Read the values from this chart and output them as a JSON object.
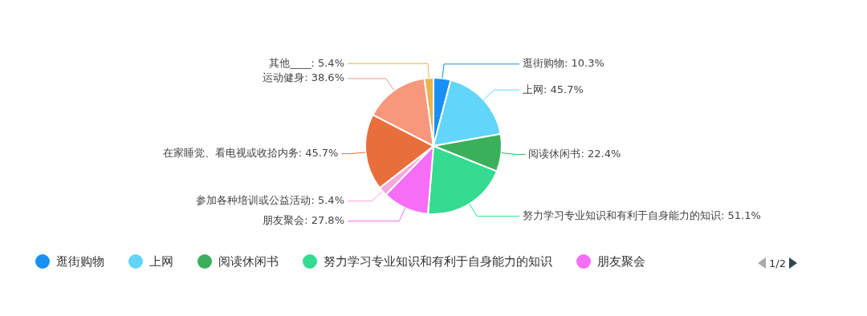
{
  "chart_data": {
    "type": "pie",
    "categories": [
      "逛街购物",
      "上网",
      "阅读休闲书",
      "努力学习专业知识和有利于自身能力的知识",
      "朋友聚会",
      "参加各种培训或公益活动",
      "在家睡觉、看电视或收拾内务",
      "运动健身",
      "其他____"
    ],
    "values": [
      10.3,
      45.7,
      22.4,
      51.1,
      27.8,
      5.4,
      45.7,
      38.6,
      5.4
    ],
    "value_labels": [
      ": 10.3%",
      ": 45.7%",
      ": 22.4%",
      ": 51.1%",
      ": 27.8%",
      ": 5.4%",
      ": 45.7%",
      ": 38.6%",
      ": 5.4%"
    ],
    "annotations": [
      "1/2"
    ],
    "colors": [
      "#1890f5",
      "#62d5fb",
      "#3bb05a",
      "#34db90",
      "#f56ef5",
      "#f7a8dc",
      "#e86f3c",
      "#f7977c",
      "#e9b54f"
    ],
    "legend": "bottom"
  }
}
